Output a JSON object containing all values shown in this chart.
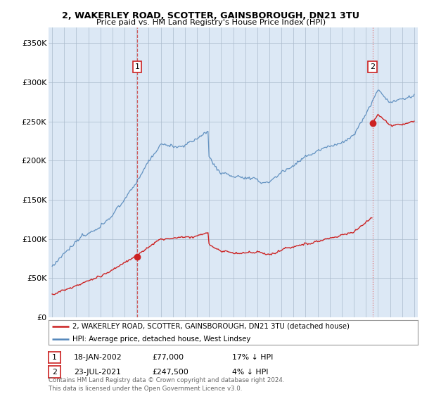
{
  "title": "2, WAKERLEY ROAD, SCOTTER, GAINSBOROUGH, DN21 3TU",
  "subtitle": "Price paid vs. HM Land Registry's House Price Index (HPI)",
  "ylim": [
    0,
    370000
  ],
  "yticks": [
    0,
    50000,
    100000,
    150000,
    200000,
    250000,
    300000,
    350000
  ],
  "ytick_labels": [
    "£0",
    "£50K",
    "£100K",
    "£150K",
    "£200K",
    "£250K",
    "£300K",
    "£350K"
  ],
  "xlim_start": 1994.7,
  "xlim_end": 2025.3,
  "xticks": [
    1995,
    1996,
    1997,
    1998,
    1999,
    2000,
    2001,
    2002,
    2003,
    2004,
    2005,
    2006,
    2007,
    2008,
    2009,
    2010,
    2011,
    2012,
    2013,
    2014,
    2015,
    2016,
    2017,
    2018,
    2019,
    2020,
    2021,
    2022,
    2023,
    2024,
    2025
  ],
  "sale1_x": 2002.05,
  "sale1_y": 77000,
  "sale1_label": "1",
  "sale2_x": 2021.55,
  "sale2_y": 247500,
  "sale2_label": "2",
  "hpi_color": "#5588bb",
  "price_color": "#cc2222",
  "vline1_color": "#cc4444",
  "vline2_color": "#dd6666",
  "plot_bg_color": "#dce8f5",
  "legend_line1": "2, WAKERLEY ROAD, SCOTTER, GAINSBOROUGH, DN21 3TU (detached house)",
  "legend_line2": "HPI: Average price, detached house, West Lindsey",
  "table_row1": [
    "1",
    "18-JAN-2002",
    "£77,000",
    "17% ↓ HPI"
  ],
  "table_row2": [
    "2",
    "23-JUL-2021",
    "£247,500",
    "4% ↓ HPI"
  ],
  "footer": "Contains HM Land Registry data © Crown copyright and database right 2024.\nThis data is licensed under the Open Government Licence v3.0.",
  "bg_color": "#ffffff",
  "grid_color": "#aabbcc"
}
